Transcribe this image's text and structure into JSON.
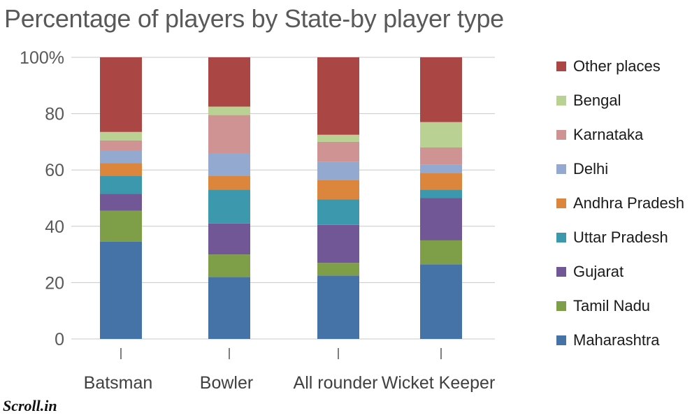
{
  "title": "Percentage of players by State-by player type",
  "logo": "Scroll.in",
  "chart_data": {
    "type": "bar",
    "stacked": true,
    "title": "Percentage of players by State-by player type",
    "xlabel": "",
    "ylabel": "",
    "ylim": [
      0,
      100
    ],
    "yticks": [
      "0",
      "20",
      "40",
      "60",
      "80",
      "100%"
    ],
    "grid": true,
    "legend_position": "right",
    "categories": [
      "Batsman",
      "Bowler",
      "All rounder",
      "Wicket Keeper"
    ],
    "series": [
      {
        "name": "Maharashtra",
        "color": "#4572a7",
        "values": [
          34.5,
          22,
          22.5,
          26.5
        ]
      },
      {
        "name": "Tamil Nadu",
        "color": "#7f9e48",
        "values": [
          11,
          8,
          4.5,
          8.5
        ]
      },
      {
        "name": "Gujarat",
        "color": "#725797",
        "values": [
          6,
          11,
          13.5,
          15
        ]
      },
      {
        "name": "Uttar Pradesh",
        "color": "#3c98ac",
        "values": [
          6.5,
          12,
          9,
          3
        ]
      },
      {
        "name": "Andhra Pradesh",
        "color": "#dc853d",
        "values": [
          4.5,
          5,
          7,
          6
        ]
      },
      {
        "name": "Delhi",
        "color": "#93a9cf",
        "values": [
          4.5,
          8,
          6.5,
          3
        ]
      },
      {
        "name": "Karnataka",
        "color": "#d09393",
        "values": [
          3.5,
          13.5,
          7,
          6
        ]
      },
      {
        "name": "Bengal",
        "color": "#b9d193",
        "values": [
          3,
          3,
          2.5,
          9
        ]
      },
      {
        "name": "Other places",
        "color": "#aa4643",
        "values": [
          26.5,
          17.5,
          27.5,
          23
        ]
      }
    ]
  }
}
